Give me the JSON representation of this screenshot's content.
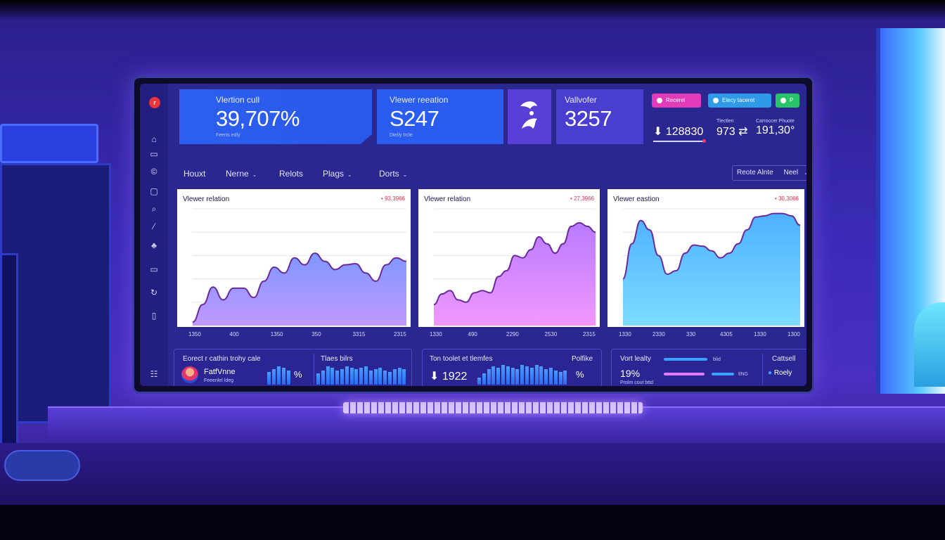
{
  "colors": {
    "accent_blue": "#2c5ff0",
    "accent_purple": "#5a3ed8",
    "pink": "#e23ab8",
    "green": "#29c46a",
    "alert": "#e0304a"
  },
  "kpis": [
    {
      "label": "Vlertion cull",
      "value": "39,707%",
      "sub": "Feerts edly"
    },
    {
      "label": "Vlewer reeation",
      "value": "S247",
      "sub": "Dtelly trcle"
    },
    {
      "icon": "bird-logo-icon"
    },
    {
      "label": "Vallvofer",
      "value": "3257"
    }
  ],
  "top_actions": [
    {
      "label": "Recerel",
      "color": "#e23ab8"
    },
    {
      "label": "Elecy taceret",
      "color": "#2e9ae8"
    },
    {
      "label": "P",
      "color": "#29c46a"
    }
  ],
  "stats": [
    {
      "caption": "",
      "value": "⬇ 128830"
    },
    {
      "caption": "Tlectlen",
      "value": "973 ⇄"
    },
    {
      "caption": "Carroccer Phuote",
      "value": "191,30°"
    }
  ],
  "nav": {
    "items": [
      "Houxt",
      "Nerne",
      "Relots",
      "Plags",
      "Dorts"
    ],
    "chevrons": [
      false,
      true,
      false,
      true,
      true
    ],
    "filter_label": "Reote Alnte",
    "filter_value": "Neel"
  },
  "charts_meta": {
    "titles": [
      "Vlewer relation",
      "Vlewer relation",
      "Vlewer eastion"
    ],
    "badges": [
      "• 93,3966",
      "• 27,3966",
      "• 30,3066"
    ],
    "xticks": [
      [
        "1350",
        "400",
        "1350",
        "350",
        "3315",
        "2315"
      ],
      [
        "1330",
        "490",
        "2290",
        "2530",
        "2315"
      ],
      [
        "1330",
        "2330",
        "330",
        "4305",
        "1330",
        "1300"
      ]
    ]
  },
  "chart_data": [
    {
      "type": "area",
      "title": "Vlewer relation",
      "ylim": [
        0,
        100
      ],
      "values": [
        3,
        18,
        33,
        22,
        32,
        32,
        24,
        38,
        50,
        45,
        58,
        52,
        62,
        55,
        48,
        52,
        53,
        45,
        38,
        52,
        58,
        55
      ]
    },
    {
      "type": "area",
      "title": "Vlewer relation",
      "ylim": [
        0,
        100
      ],
      "values": [
        18,
        27,
        30,
        22,
        20,
        28,
        30,
        28,
        42,
        47,
        60,
        58,
        65,
        76,
        70,
        62,
        70,
        85,
        88,
        85,
        80
      ]
    },
    {
      "type": "area",
      "title": "Vlewer eastion",
      "ylim": [
        0,
        100
      ],
      "values": [
        40,
        70,
        90,
        82,
        60,
        44,
        47,
        62,
        69,
        68,
        64,
        58,
        62,
        70,
        82,
        93,
        94,
        96,
        96,
        94,
        86
      ]
    }
  ],
  "bottom": {
    "panel1": {
      "title": "Eorect r cathin trohy cale",
      "name": "FatfVnne",
      "name_sub": "Feeenlel ldeg",
      "pct": "%",
      "side_title": "Tlaes bilrs"
    },
    "panel2": {
      "title": "Ton toolet et tlemfes",
      "value": "⬇ 1922",
      "side": "Polfike",
      "pct": "%"
    },
    "panel3": {
      "title": "Vort lealty",
      "pct": "19%",
      "pct_sub": "Prolm cout bttd",
      "tag1": "blid",
      "tag2": "tlNG",
      "side_title": "Cattsell",
      "side_value": "Roely"
    }
  },
  "bottom_bars": {
    "panel1a": [
      18,
      22,
      26,
      24,
      20
    ],
    "panel1b": [
      16,
      20,
      26,
      24,
      20,
      22,
      26,
      24,
      22,
      24,
      26,
      20,
      22,
      24,
      20,
      18,
      22,
      24,
      22
    ],
    "panel2": [
      10,
      16,
      22,
      26,
      24,
      28,
      26,
      24,
      22,
      28,
      26,
      24,
      28,
      26,
      22,
      24,
      20,
      18,
      20
    ]
  },
  "sidebar_icons": [
    "logo-icon",
    "home-icon",
    "folder-icon",
    "copyright-icon",
    "chat-icon",
    "search-icon",
    "pen-icon",
    "users-icon",
    "window-icon",
    "refresh-icon",
    "trash-icon",
    "settings-icon"
  ]
}
